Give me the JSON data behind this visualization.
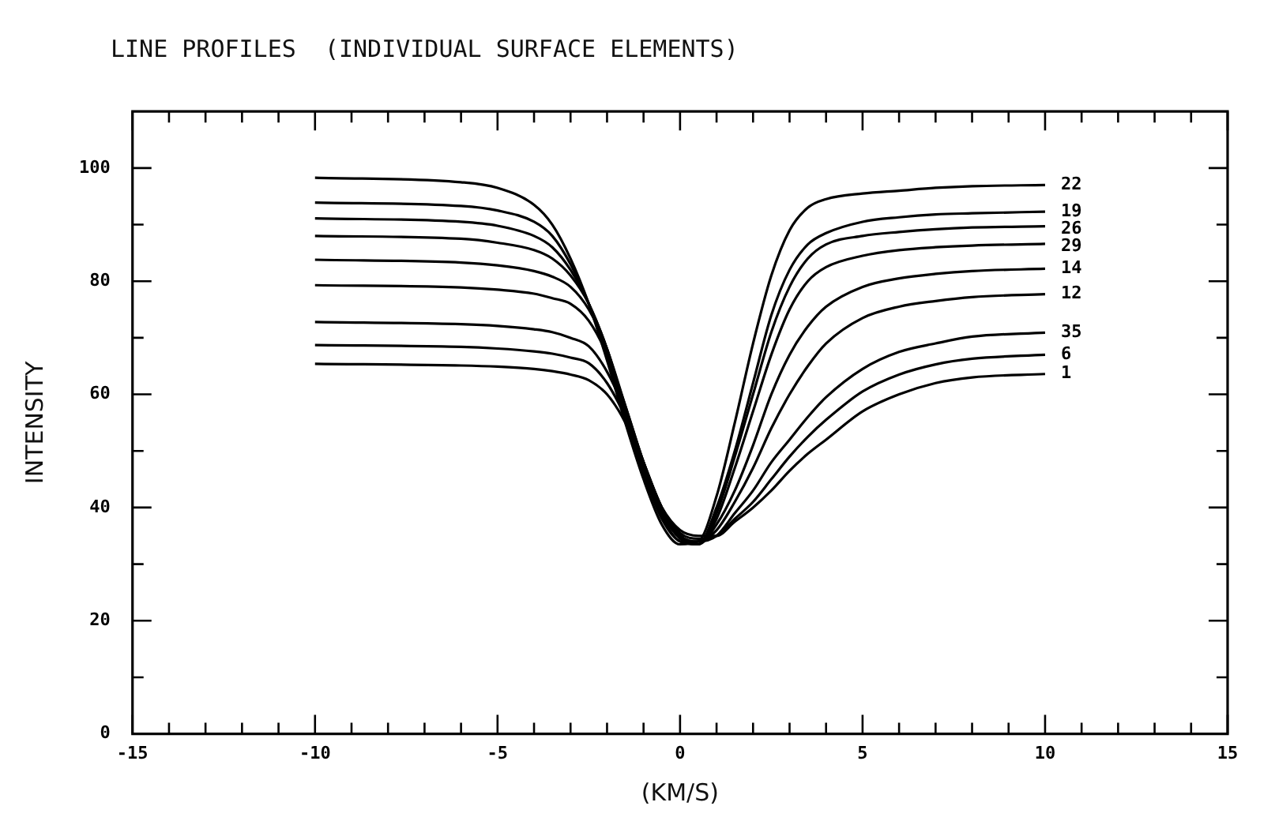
{
  "chart_data": {
    "type": "line",
    "title": "LINE PROFILES  (INDIVIDUAL SURFACE ELEMENTS)",
    "xlabel": "(KM/S)",
    "ylabel": "INTENSITY",
    "xlim": [
      -15,
      15
    ],
    "xticks": [
      -15,
      {
        "value": -14,
        "label": null
      },
      {
        "value": -13,
        "label": null
      },
      {
        "value": -12,
        "label": null
      },
      {
        "value": -11,
        "label": null
      },
      -10,
      {
        "value": -9,
        "label": null
      },
      {
        "value": -8,
        "label": null
      },
      {
        "value": -7,
        "label": null
      },
      {
        "value": -6,
        "label": null
      },
      -5,
      {
        "value": -4,
        "label": null
      },
      {
        "value": -3,
        "label": null
      },
      {
        "value": -2,
        "label": null
      },
      {
        "value": -1,
        "label": null
      },
      0,
      {
        "value": 1,
        "label": null
      },
      {
        "value": 2,
        "label": null
      },
      {
        "value": 3,
        "label": null
      },
      {
        "value": 4,
        "label": null
      },
      5,
      {
        "value": 6,
        "label": null
      },
      {
        "value": 7,
        "label": null
      },
      {
        "value": 8,
        "label": null
      },
      {
        "value": 9,
        "label": null
      },
      10,
      {
        "value": 11,
        "label": null
      },
      {
        "value": 12,
        "label": null
      },
      {
        "value": 13,
        "label": null
      },
      {
        "value": 14,
        "label": null
      },
      15
    ],
    "ylim": [
      0,
      110
    ],
    "yticks": [
      0,
      {
        "value": 10,
        "label": null
      },
      20,
      {
        "value": 30,
        "label": null
      },
      40,
      {
        "value": 50,
        "label": null
      },
      60,
      {
        "value": 70,
        "label": null
      },
      80,
      {
        "value": 90,
        "label": null
      },
      100
    ],
    "grid": false,
    "legend": false,
    "marker": "none",
    "line_style": "solid",
    "x": [
      -10,
      -6,
      -5,
      -4,
      -3.5,
      -3,
      -2.5,
      -2,
      -1.5,
      -1,
      -0.5,
      0,
      0.5,
      1,
      1.5,
      2,
      2.5,
      3,
      3.5,
      4,
      5,
      6,
      7,
      8,
      10
    ],
    "series": [
      {
        "name": "22",
        "color": "#000000",
        "values": [
          98.3,
          97.5,
          96.5,
          93.5,
          90,
          84,
          76,
          66,
          55,
          45,
          37,
          33.5,
          34,
          42,
          55,
          69,
          81,
          89,
          93,
          94.5,
          95.5,
          96,
          96.5,
          96.8,
          97.0
        ]
      },
      {
        "name": "19",
        "color": "#000000",
        "values": [
          93.9,
          93.3,
          92.5,
          90.5,
          88,
          83,
          76,
          67,
          56,
          46,
          38,
          34,
          33.5,
          40,
          50,
          62,
          74,
          82,
          86.5,
          88.5,
          90.5,
          91.3,
          91.8,
          92,
          92.3
        ]
      },
      {
        "name": "26",
        "color": "#000000",
        "values": [
          91.1,
          90.5,
          89.8,
          88,
          86,
          82,
          76,
          68,
          57,
          47,
          38.5,
          34,
          33.5,
          39,
          49,
          60,
          71,
          79,
          84,
          86.5,
          88,
          88.7,
          89.2,
          89.5,
          89.7
        ]
      },
      {
        "name": "29",
        "color": "#000000",
        "values": [
          88,
          87.5,
          86.8,
          85.5,
          84,
          81,
          76,
          68,
          57.5,
          47,
          39,
          34.5,
          33.5,
          38,
          47,
          57,
          67,
          75,
          80,
          82.5,
          84.5,
          85.5,
          86,
          86.3,
          86.6
        ]
      },
      {
        "name": "14",
        "color": "#000000",
        "values": [
          83.8,
          83.3,
          82.8,
          81.8,
          80.8,
          79,
          75,
          68,
          58,
          48,
          39.5,
          35,
          33.5,
          37,
          43,
          51,
          60,
          67,
          72,
          75.5,
          79,
          80.5,
          81.3,
          81.8,
          82.2
        ]
      },
      {
        "name": "12",
        "color": "#000000",
        "values": [
          79.3,
          78.9,
          78.5,
          77.8,
          77,
          76,
          73,
          67,
          58,
          48,
          40,
          35,
          34,
          36,
          41,
          47,
          54,
          60,
          65,
          69,
          73.5,
          75.5,
          76.5,
          77.2,
          77.7
        ]
      },
      {
        "name": "35",
        "color": "#000000",
        "values": [
          72.8,
          72.4,
          72.1,
          71.5,
          71,
          70,
          68.5,
          64,
          57,
          48,
          40,
          35,
          34,
          35,
          39,
          43,
          48,
          52,
          56,
          59.5,
          64.5,
          67.5,
          69,
          70.2,
          70.9
        ]
      },
      {
        "name": "6",
        "color": "#000000",
        "values": [
          68.7,
          68.4,
          68.1,
          67.6,
          67.2,
          66.5,
          65.5,
          62,
          56,
          48,
          40,
          35.5,
          34.5,
          35,
          38,
          41,
          45,
          49,
          52.5,
          55.5,
          60.5,
          63.5,
          65.3,
          66.3,
          67
        ]
      },
      {
        "name": "1",
        "color": "#000000",
        "values": [
          65.4,
          65.1,
          64.9,
          64.5,
          64.1,
          63.5,
          62.5,
          60,
          55,
          47,
          40,
          36,
          35,
          35,
          37.5,
          40,
          43,
          46.5,
          49.5,
          52,
          57,
          60,
          62,
          63,
          63.6
        ]
      }
    ]
  }
}
